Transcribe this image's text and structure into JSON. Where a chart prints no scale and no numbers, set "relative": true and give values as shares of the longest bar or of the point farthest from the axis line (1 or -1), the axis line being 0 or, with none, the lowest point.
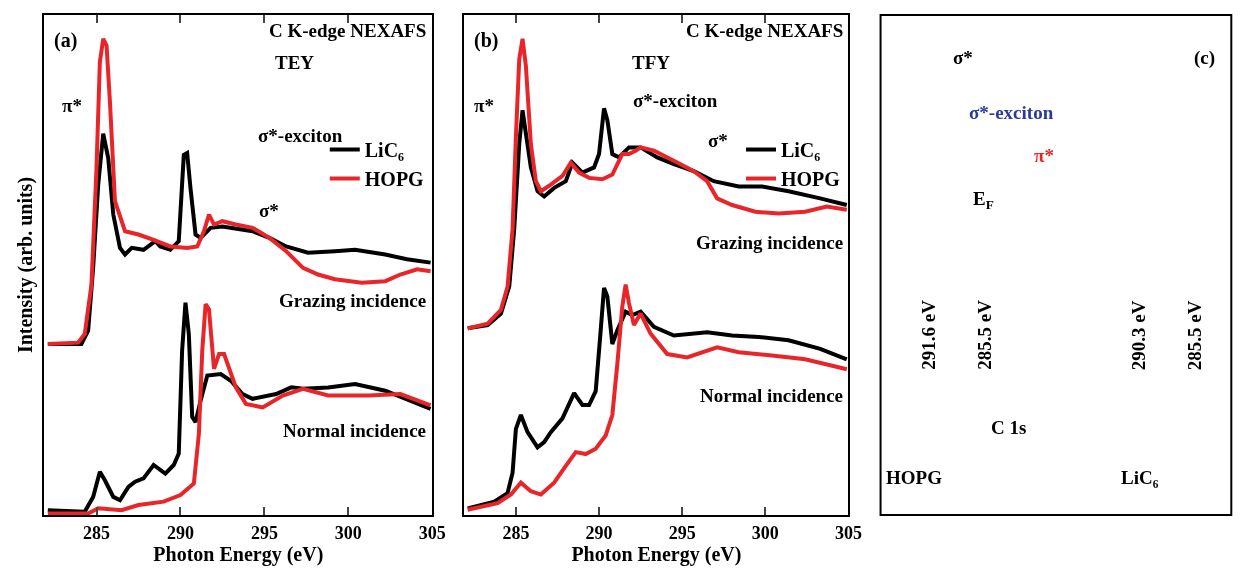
{
  "chart_data": [
    {
      "type": "line",
      "title": "C K-edge NEXAFS",
      "subtitle": "TEY",
      "xlabel": "Photon Energy (eV)",
      "ylabel": "Intensity (arb. units)",
      "relative": true,
      "xlim": [
        281.9,
        305
      ],
      "xticks": [
        285,
        290,
        295,
        300,
        305
      ],
      "legend": "top right",
      "marker": "none",
      "line_style": "solid",
      "annotations": [
        "(a)",
        "π*",
        "σ*-exciton",
        "σ*",
        "Grazing incidence",
        "Normal incidence"
      ],
      "series": [
        {
          "name": "LiC₆",
          "color": "#000000",
          "x": [
            282.1,
            284.1,
            284.5,
            284.8,
            285.1,
            285.4,
            285.7,
            286.0,
            286.4,
            286.7,
            287.1,
            287.8,
            288.5,
            288.8,
            289.4,
            289.9,
            290.2,
            290.4,
            290.6,
            290.9,
            291.2,
            291.8,
            292.5,
            294.3,
            295.3,
            296.3,
            297.6,
            299.2,
            300.4,
            302.2,
            303.5,
            304.9
          ],
          "values": [
            0.359,
            0.359,
            0.387,
            0.519,
            0.693,
            0.801,
            0.749,
            0.631,
            0.561,
            0.547,
            0.561,
            0.557,
            0.575,
            0.564,
            0.557,
            0.575,
            0.756,
            0.76,
            0.686,
            0.589,
            0.582,
            0.603,
            0.606,
            0.596,
            0.582,
            0.564,
            0.551,
            0.554,
            0.557,
            0.547,
            0.537,
            0.53
          ]
        },
        {
          "name": "HOPG",
          "color": "#e8262a",
          "x": [
            282.1,
            283.9,
            284.3,
            284.7,
            285.0,
            285.2,
            285.4,
            285.6,
            285.8,
            286.1,
            286.7,
            287.5,
            288.4,
            289.4,
            290.4,
            291.0,
            291.4,
            291.7,
            292.0,
            292.5,
            293.3,
            294.3,
            295.3,
            296.3,
            297.3,
            298.2,
            299.2,
            300.8,
            302.2,
            303.1,
            304.1,
            304.9
          ],
          "values": [
            0.359,
            0.362,
            0.38,
            0.484,
            0.728,
            0.951,
            1.0,
            0.986,
            0.868,
            0.659,
            0.596,
            0.589,
            0.578,
            0.564,
            0.561,
            0.564,
            0.596,
            0.631,
            0.61,
            0.617,
            0.61,
            0.603,
            0.582,
            0.554,
            0.519,
            0.505,
            0.495,
            0.488,
            0.491,
            0.505,
            0.516,
            0.512
          ]
        },
        {
          "color": "#000000",
          "x": [
            282.1,
            284.3,
            284.8,
            285.2,
            285.5,
            286.0,
            286.4,
            286.9,
            287.3,
            287.8,
            288.4,
            289.1,
            289.6,
            289.9,
            290.1,
            290.3,
            290.5,
            290.7,
            290.9,
            291.2,
            291.6,
            292.4,
            293.0,
            293.7,
            294.3,
            295.7,
            296.6,
            297.3,
            298.8,
            300.4,
            302.2,
            304.9
          ],
          "values": [
            0.01,
            0.007,
            0.038,
            0.091,
            0.073,
            0.038,
            0.031,
            0.059,
            0.07,
            0.077,
            0.105,
            0.087,
            0.105,
            0.129,
            0.345,
            0.446,
            0.38,
            0.206,
            0.195,
            0.24,
            0.293,
            0.296,
            0.282,
            0.254,
            0.244,
            0.254,
            0.268,
            0.265,
            0.268,
            0.275,
            0.261,
            0.223
          ]
        },
        {
          "color": "#e8262a",
          "x": [
            282.1,
            284.5,
            285.1,
            286.5,
            287.5,
            289.0,
            290.0,
            290.8,
            291.1,
            291.3,
            291.5,
            291.7,
            292.0,
            292.3,
            292.6,
            293.3,
            293.9,
            294.9,
            296.1,
            297.3,
            298.8,
            301.2,
            303.1,
            304.9
          ],
          "values": [
            0.003,
            0.003,
            0.014,
            0.01,
            0.021,
            0.028,
            0.042,
            0.066,
            0.171,
            0.345,
            0.443,
            0.432,
            0.307,
            0.338,
            0.338,
            0.268,
            0.233,
            0.226,
            0.251,
            0.265,
            0.251,
            0.251,
            0.254,
            0.23
          ]
        }
      ]
    },
    {
      "type": "line",
      "title": "C K-edge NEXAFS",
      "subtitle": "TFY",
      "xlabel": "Photon Energy (eV)",
      "relative": true,
      "xlim": [
        281.9,
        305
      ],
      "xticks": [
        285,
        290,
        295,
        300,
        305
      ],
      "legend": "top right",
      "marker": "none",
      "line_style": "solid",
      "annotations": [
        "(b)",
        "π*",
        "σ*-exciton",
        "σ*",
        "Grazing incidence",
        "Normal incidence"
      ],
      "series": [
        {
          "name": "LiC₆",
          "color": "#000000",
          "x": [
            282.1,
            283.3,
            284.1,
            284.6,
            284.9,
            285.2,
            285.4,
            285.6,
            285.9,
            286.3,
            286.7,
            287.3,
            288.0,
            288.4,
            289.0,
            289.7,
            290.0,
            290.3,
            290.5,
            290.8,
            291.2,
            291.8,
            292.5,
            293.5,
            294.5,
            295.7,
            296.9,
            298.4,
            299.8,
            301.4,
            303.3,
            304.9
          ],
          "values": [
            0.392,
            0.399,
            0.423,
            0.48,
            0.601,
            0.779,
            0.85,
            0.801,
            0.73,
            0.68,
            0.669,
            0.687,
            0.701,
            0.74,
            0.719,
            0.73,
            0.758,
            0.854,
            0.829,
            0.758,
            0.751,
            0.772,
            0.772,
            0.751,
            0.737,
            0.722,
            0.701,
            0.69,
            0.69,
            0.68,
            0.665,
            0.651
          ]
        },
        {
          "name": "HOPG",
          "color": "#e8262a",
          "x": [
            282.1,
            283.3,
            284.1,
            284.5,
            284.8,
            285.0,
            285.2,
            285.4,
            285.6,
            285.9,
            286.2,
            286.5,
            287.1,
            287.8,
            288.3,
            288.8,
            289.4,
            290.2,
            290.8,
            291.4,
            291.8,
            292.2,
            292.5,
            293.3,
            294.5,
            295.7,
            296.5,
            297.1,
            298.0,
            299.4,
            300.8,
            302.4,
            303.7,
            304.9
          ],
          "values": [
            0.392,
            0.402,
            0.431,
            0.48,
            0.601,
            0.794,
            0.957,
            1.0,
            0.943,
            0.779,
            0.701,
            0.68,
            0.694,
            0.712,
            0.74,
            0.719,
            0.708,
            0.705,
            0.715,
            0.758,
            0.758,
            0.765,
            0.772,
            0.765,
            0.744,
            0.722,
            0.701,
            0.665,
            0.651,
            0.637,
            0.633,
            0.637,
            0.648,
            0.641
          ]
        },
        {
          "color": "#000000",
          "x": [
            282.1,
            283.7,
            284.5,
            284.8,
            285.0,
            285.3,
            285.7,
            286.3,
            286.7,
            287.1,
            287.8,
            288.5,
            289.0,
            289.4,
            289.8,
            290.1,
            290.3,
            290.5,
            290.8,
            291.1,
            291.6,
            292.0,
            292.5,
            293.3,
            294.5,
            296.5,
            298.0,
            299.6,
            301.4,
            303.3,
            304.9
          ],
          "values": [
            0.014,
            0.028,
            0.046,
            0.089,
            0.181,
            0.21,
            0.174,
            0.142,
            0.153,
            0.174,
            0.203,
            0.256,
            0.231,
            0.231,
            0.26,
            0.388,
            0.477,
            0.459,
            0.359,
            0.388,
            0.427,
            0.42,
            0.427,
            0.395,
            0.377,
            0.384,
            0.377,
            0.374,
            0.367,
            0.349,
            0.327
          ]
        },
        {
          "color": "#e8262a",
          "x": [
            282.1,
            283.9,
            284.7,
            285.3,
            285.9,
            286.5,
            287.3,
            288.0,
            288.6,
            289.2,
            289.8,
            290.4,
            290.8,
            291.1,
            291.4,
            291.6,
            291.8,
            292.1,
            292.5,
            293.1,
            294.1,
            295.3,
            297.1,
            298.4,
            300.4,
            302.4,
            304.9
          ],
          "values": [
            0.011,
            0.025,
            0.043,
            0.068,
            0.05,
            0.043,
            0.068,
            0.103,
            0.132,
            0.128,
            0.139,
            0.167,
            0.21,
            0.317,
            0.438,
            0.484,
            0.445,
            0.399,
            0.423,
            0.381,
            0.338,
            0.331,
            0.352,
            0.342,
            0.335,
            0.327,
            0.306
          ]
        }
      ]
    },
    {
      "type": "other",
      "annotations": [
        "(c)",
        "σ*",
        "σ*-exciton",
        "π*",
        "E$_{F}$",
        "291.6 eV",
        "285.5 eV",
        "290.3 eV",
        "285.5 eV",
        "C 1s",
        "HOPG",
        "LiC₆"
      ]
    }
  ]
}
